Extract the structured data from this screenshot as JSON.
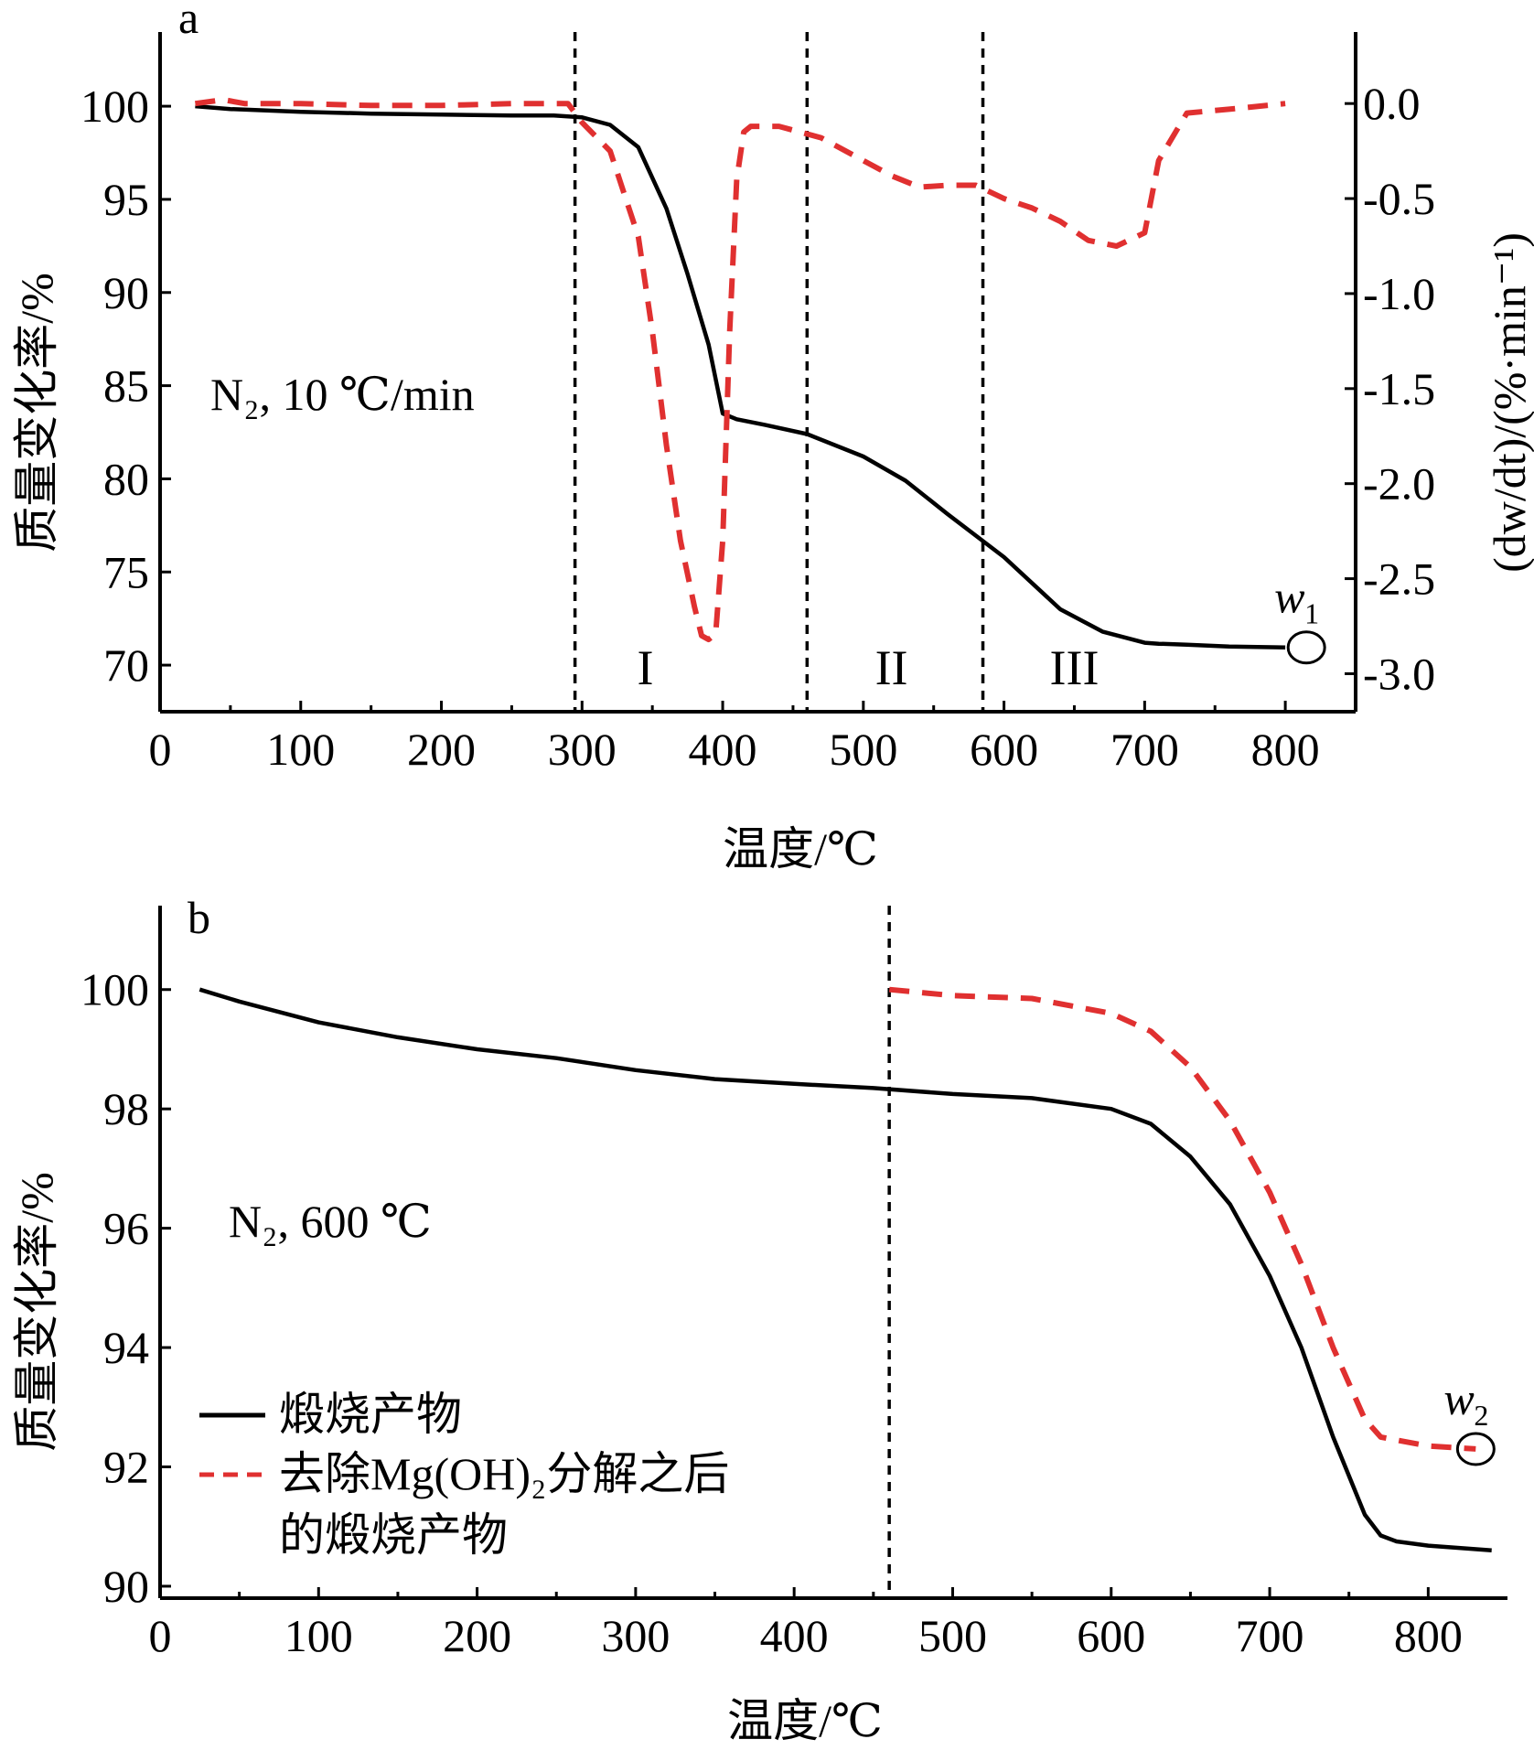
{
  "chart_data": [
    {
      "type": "line",
      "panel_label": "a",
      "annotation": "N₂, 10 ℃/min",
      "xlabel": "温度/℃",
      "ylabel": "质量变化率/%",
      "ylabel_right": "(dw/dt)/(%·min⁻¹)",
      "xlim": [
        0,
        850
      ],
      "ylim": [
        67.5,
        103
      ],
      "ylim_right": [
        -3.2,
        0.28
      ],
      "x_ticks": [
        0,
        100,
        200,
        300,
        400,
        500,
        600,
        700,
        800
      ],
      "y_ticks": [
        70,
        75,
        80,
        85,
        90,
        95,
        100
      ],
      "y_right_ticks": [
        0.0,
        -0.5,
        -1.0,
        -1.5,
        -2.0,
        -2.5,
        -3.0
      ],
      "y_right_tick_labels": [
        "0.0",
        "-0.5",
        "-1.0",
        "-1.5",
        "-2.0",
        "-2.5",
        "-3.0"
      ],
      "region_lines_x": [
        295,
        460,
        585
      ],
      "region_labels": [
        {
          "text": "I",
          "x": 345
        },
        {
          "text": "II",
          "x": 520
        },
        {
          "text": "III",
          "x": 650
        }
      ],
      "marker_label": "w",
      "marker_sub": "1",
      "marker_x": 815,
      "series": [
        {
          "axis": "left",
          "style": "solid",
          "color": "#000000",
          "x": [
            25,
            50,
            100,
            150,
            200,
            250,
            280,
            300,
            320,
            340,
            360,
            375,
            390,
            400,
            410,
            430,
            460,
            500,
            530,
            560,
            600,
            640,
            670,
            700,
            710,
            730,
            760,
            800
          ],
          "y": [
            100.0,
            99.85,
            99.7,
            99.6,
            99.55,
            99.5,
            99.5,
            99.4,
            99.0,
            97.8,
            94.5,
            91.0,
            87.2,
            83.5,
            83.2,
            82.9,
            82.4,
            81.2,
            79.9,
            78.1,
            75.8,
            73.0,
            71.8,
            71.2,
            71.15,
            71.1,
            71.0,
            70.95
          ]
        },
        {
          "axis": "right",
          "style": "dashed",
          "color": "#e03030",
          "x": [
            25,
            45,
            60,
            100,
            150,
            200,
            250,
            290,
            300,
            320,
            340,
            350,
            360,
            370,
            380,
            385,
            390,
            395,
            400,
            405,
            410,
            415,
            420,
            440,
            470,
            500,
            520,
            540,
            560,
            580,
            600,
            620,
            640,
            660,
            680,
            700,
            710,
            730,
            760,
            800
          ],
          "y": [
            0.0,
            0.02,
            0.0,
            0.0,
            -0.01,
            -0.01,
            0.0,
            0.0,
            -0.1,
            -0.25,
            -0.7,
            -1.2,
            -1.8,
            -2.3,
            -2.65,
            -2.8,
            -2.82,
            -2.79,
            -2.3,
            -1.2,
            -0.4,
            -0.15,
            -0.12,
            -0.12,
            -0.18,
            -0.3,
            -0.38,
            -0.44,
            -0.43,
            -0.43,
            -0.5,
            -0.55,
            -0.62,
            -0.72,
            -0.75,
            -0.68,
            -0.3,
            -0.05,
            -0.03,
            0.0
          ]
        }
      ]
    },
    {
      "type": "line",
      "panel_label": "b",
      "annotation": "N₂, 600 ℃",
      "xlabel": "温度/℃",
      "ylabel": "质量变化率/%",
      "xlim": [
        0,
        850
      ],
      "ylim": [
        89.8,
        101.1
      ],
      "x_ticks": [
        0,
        100,
        200,
        300,
        400,
        500,
        600,
        700,
        800
      ],
      "y_ticks": [
        90,
        92,
        94,
        96,
        98,
        100
      ],
      "region_lines_x": [
        460
      ],
      "marker_label": "w",
      "marker_sub": "2",
      "marker_x": 830,
      "legend_placement": "lower-left",
      "legend": [
        {
          "label": "煅烧产物",
          "style": "solid",
          "color": "#000000"
        },
        {
          "label": "去除Mg(OH)₂分解之后",
          "label_line2": "的煅烧产物",
          "style": "dashed",
          "color": "#e03030"
        }
      ],
      "series": [
        {
          "name": "煅烧产物",
          "style": "solid",
          "color": "#000000",
          "x": [
            25,
            50,
            100,
            150,
            200,
            250,
            300,
            350,
            400,
            450,
            500,
            550,
            600,
            625,
            650,
            675,
            700,
            720,
            740,
            760,
            770,
            780,
            800,
            840
          ],
          "y": [
            100.0,
            99.8,
            99.45,
            99.2,
            99.0,
            98.85,
            98.65,
            98.5,
            98.42,
            98.35,
            98.25,
            98.18,
            98.0,
            97.75,
            97.2,
            96.4,
            95.2,
            94.0,
            92.5,
            91.2,
            90.85,
            90.75,
            90.68,
            90.6
          ]
        },
        {
          "name": "去除Mg(OH)₂分解之后的煅烧产物",
          "style": "dashed",
          "color": "#e03030",
          "x": [
            460,
            500,
            550,
            600,
            625,
            650,
            675,
            700,
            720,
            740,
            760,
            770,
            780,
            800,
            830
          ],
          "y": [
            100.0,
            99.9,
            99.85,
            99.6,
            99.3,
            98.7,
            97.8,
            96.6,
            95.4,
            94.0,
            92.8,
            92.5,
            92.45,
            92.35,
            92.3
          ]
        }
      ]
    }
  ]
}
